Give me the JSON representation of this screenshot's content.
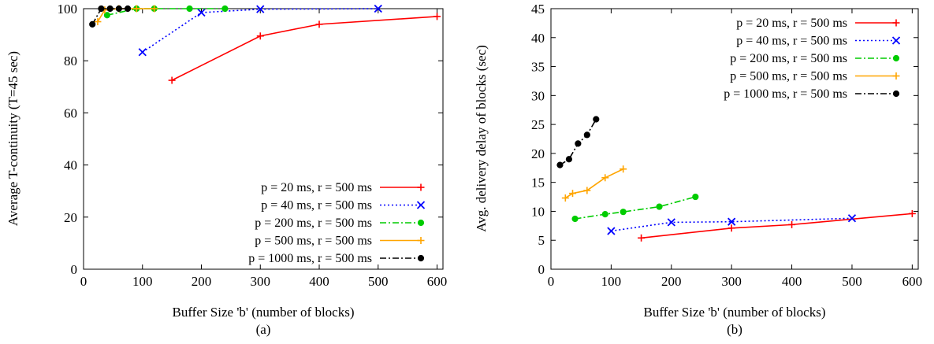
{
  "chart_data": [
    {
      "type": "line",
      "sub_label": "(a)",
      "title": "",
      "xlabel": "Buffer Size 'b' (number of blocks)",
      "ylabel": "Average T-continuity (T=45 sec)",
      "xlim": [
        0,
        610
      ],
      "ylim": [
        0,
        100
      ],
      "xticks": [
        0,
        100,
        200,
        300,
        400,
        500,
        600
      ],
      "yticks": [
        0,
        20,
        40,
        60,
        80,
        100
      ],
      "legend_position": "bottom-right",
      "grid": false,
      "series": [
        {
          "name": "p = 20 ms, r = 500 ms",
          "color": "#ff0000",
          "marker": "plus",
          "dash": "solid",
          "x": [
            150,
            300,
            400,
            600
          ],
          "y": [
            72.5,
            89.5,
            94,
            97
          ]
        },
        {
          "name": "p = 40 ms, r = 500 ms",
          "color": "#0000ff",
          "marker": "cross",
          "dash": "dotted",
          "x": [
            100,
            200,
            300,
            500
          ],
          "y": [
            83.3,
            98.5,
            99.8,
            100
          ]
        },
        {
          "name": "p = 200 ms, r = 500 ms",
          "color": "#00cc00",
          "marker": "dot",
          "dash": "dashdot",
          "x": [
            40,
            90,
            120,
            180,
            240
          ],
          "y": [
            97.5,
            100,
            100,
            100,
            100
          ]
        },
        {
          "name": "p = 500 ms, r = 500 ms",
          "color": "#ffa500",
          "marker": "plus",
          "dash": "solid",
          "x": [
            24,
            36,
            60,
            90,
            120
          ],
          "y": [
            95,
            99.5,
            100,
            100,
            100
          ]
        },
        {
          "name": "p = 1000 ms, r = 500 ms",
          "color": "#000000",
          "marker": "dot",
          "dash": "dashdot",
          "x": [
            15,
            30,
            45,
            60,
            75
          ],
          "y": [
            94,
            100,
            100,
            100,
            100
          ]
        }
      ]
    },
    {
      "type": "line",
      "sub_label": "(b)",
      "title": "",
      "xlabel": "Buffer Size 'b' (number of blocks)",
      "ylabel": "Avg. delivery delay of blocks (sec)",
      "xlim": [
        0,
        610
      ],
      "ylim": [
        0,
        45
      ],
      "xticks": [
        0,
        100,
        200,
        300,
        400,
        500,
        600
      ],
      "yticks": [
        0,
        5,
        10,
        15,
        20,
        25,
        30,
        35,
        40,
        45
      ],
      "legend_position": "top-right",
      "grid": false,
      "series": [
        {
          "name": "p = 20 ms, r = 500 ms",
          "color": "#ff0000",
          "marker": "plus",
          "dash": "solid",
          "x": [
            150,
            300,
            400,
            600
          ],
          "y": [
            5.4,
            7.1,
            7.7,
            9.6
          ]
        },
        {
          "name": "p = 40 ms, r = 500 ms",
          "color": "#0000ff",
          "marker": "cross",
          "dash": "dotted",
          "x": [
            100,
            200,
            300,
            500
          ],
          "y": [
            6.6,
            8.1,
            8.2,
            8.8
          ]
        },
        {
          "name": "p = 200 ms, r = 500 ms",
          "color": "#00cc00",
          "marker": "dot",
          "dash": "dashdot",
          "x": [
            40,
            90,
            120,
            180,
            240
          ],
          "y": [
            8.7,
            9.5,
            9.9,
            10.8,
            12.5
          ]
        },
        {
          "name": "p = 500 ms, r = 500 ms",
          "color": "#ffa500",
          "marker": "plus",
          "dash": "solid",
          "x": [
            24,
            36,
            60,
            90,
            120
          ],
          "y": [
            12.3,
            13.1,
            13.6,
            15.8,
            17.3
          ]
        },
        {
          "name": "p = 1000 ms, r = 500 ms",
          "color": "#000000",
          "marker": "dot",
          "dash": "dashdot",
          "x": [
            15,
            30,
            45,
            60,
            75
          ],
          "y": [
            18,
            19,
            21.7,
            23.2,
            25.9
          ]
        }
      ]
    }
  ]
}
